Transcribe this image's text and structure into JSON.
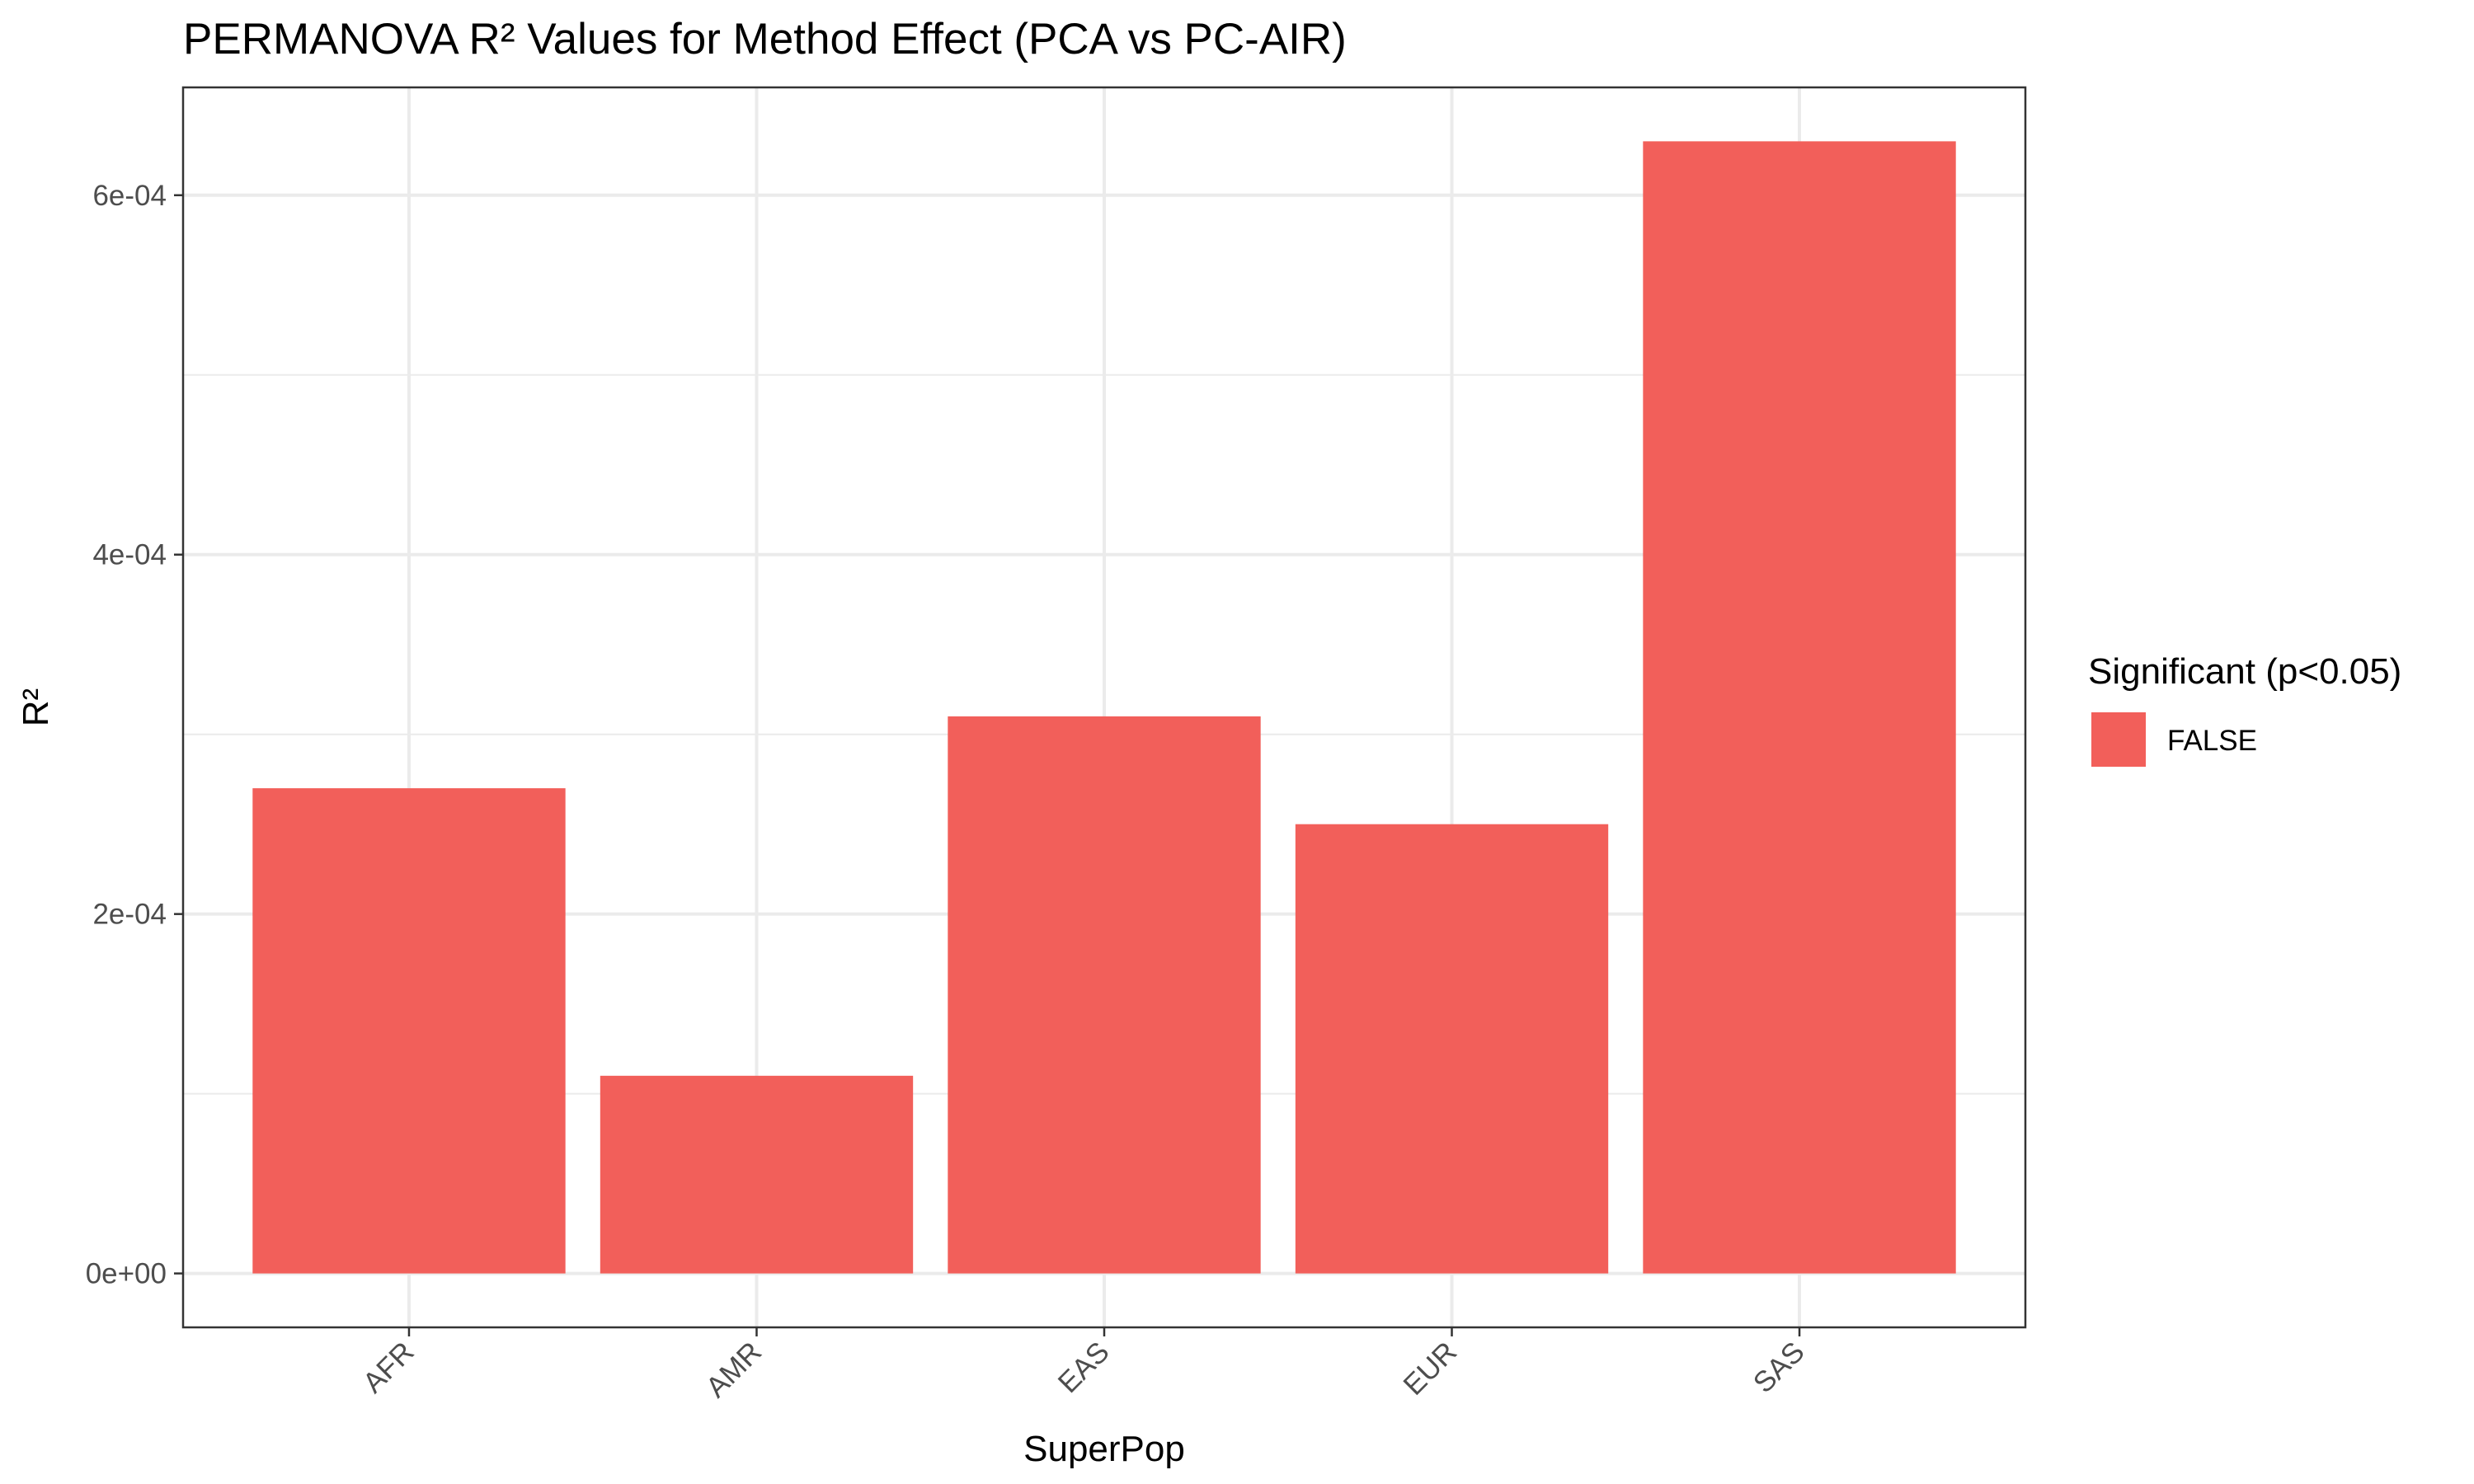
{
  "chart_data": {
    "type": "bar",
    "title": "PERMANOVA R² Values for Method Effect (PCA vs PC-AIR)",
    "xlabel": "SuperPop",
    "ylabel": "R²",
    "categories": [
      "AFR",
      "AMR",
      "EAS",
      "EUR",
      "SAS"
    ],
    "values": [
      0.00027,
      0.00011,
      0.00031,
      0.00025,
      0.00063
    ],
    "ylim": [
      -3e-05,
      0.00066
    ],
    "yticks": [
      0,
      0.0002,
      0.0004,
      0.0006
    ],
    "ytick_labels": [
      "0e+00",
      "2e-04",
      "4e-04",
      "6e-04"
    ],
    "grid": true,
    "legend": {
      "title": "Significant (p<0.05)",
      "placement": "right",
      "items": [
        {
          "label": "FALSE",
          "color": "#F25F5A"
        }
      ]
    },
    "colors": {
      "bar": "#F25F5A",
      "grid": "#EBEBEB",
      "panel_border": "#333333"
    }
  }
}
